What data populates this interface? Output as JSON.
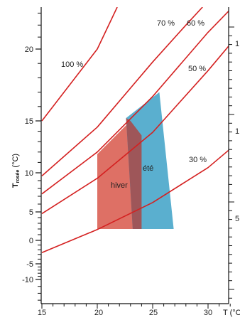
{
  "chart_data": {
    "type": "line",
    "xlabel": "T (°C",
    "ylabel": {
      "main": "T",
      "subscript": "rosée",
      "unit": " (°C)"
    },
    "xlim": [
      15,
      32
    ],
    "ylim": [
      -13.5,
      23.5
    ],
    "x_ticks": [
      "15",
      "20",
      "25",
      "30"
    ],
    "y_ticks": [
      "20",
      "15",
      "10",
      "5",
      "0",
      "-5",
      "-10"
    ],
    "right_axis_labels": [
      "1",
      "1",
      "5"
    ],
    "colors": {
      "curve": "#d42020",
      "hiver_zone": "#de7065",
      "ete_zone": "#5aafcf",
      "overlap": "#9e5659"
    },
    "series": [
      {
        "name": "100 %",
        "values": [
          [
            15,
            15
          ],
          [
            20,
            20
          ],
          [
            21.8,
            23.5
          ]
        ]
      },
      {
        "name": "70 %",
        "values": [
          [
            15,
            9.6
          ],
          [
            20,
            14.4
          ],
          [
            25,
            19.1
          ],
          [
            28,
            22.0
          ],
          [
            29.5,
            23.5
          ]
        ]
      },
      {
        "name": "60 %",
        "values": [
          [
            15,
            7.3
          ],
          [
            20,
            12.0
          ],
          [
            25,
            16.7
          ],
          [
            30,
            21.4
          ],
          [
            32,
            23.3
          ]
        ]
      },
      {
        "name": "50 %",
        "values": [
          [
            15,
            4.7
          ],
          [
            20,
            9.3
          ],
          [
            25,
            13.9
          ],
          [
            30,
            18.5
          ],
          [
            32,
            20.4
          ]
        ]
      },
      {
        "name": "30 %",
        "values": [
          [
            15,
            -2.6
          ],
          [
            20,
            1.9
          ],
          [
            25,
            6.2
          ],
          [
            30,
            10.5
          ],
          [
            32,
            12.3
          ]
        ]
      }
    ],
    "zones": [
      {
        "name": "hiver",
        "polygon": [
          [
            20.0,
            2.0
          ],
          [
            24.0,
            2.0
          ],
          [
            24.0,
            13.6
          ],
          [
            23.0,
            15.0
          ],
          [
            20.0,
            11.8
          ]
        ]
      },
      {
        "name": "été",
        "polygon": [
          [
            23.2,
            2.0
          ],
          [
            26.9,
            2.0
          ],
          [
            25.6,
            17.0
          ],
          [
            22.6,
            15.2
          ]
        ]
      }
    ],
    "annotations": [
      {
        "text": "100 %",
        "series": "100 %"
      },
      {
        "text": "70 %",
        "series": "70 %"
      },
      {
        "text": "60 %",
        "series": "60 %"
      },
      {
        "text": "50 %",
        "series": "50 %"
      },
      {
        "text": "30 %",
        "series": "30 %"
      },
      {
        "text": "hiver",
        "zone": "hiver"
      },
      {
        "text": "été",
        "zone": "été"
      }
    ]
  }
}
